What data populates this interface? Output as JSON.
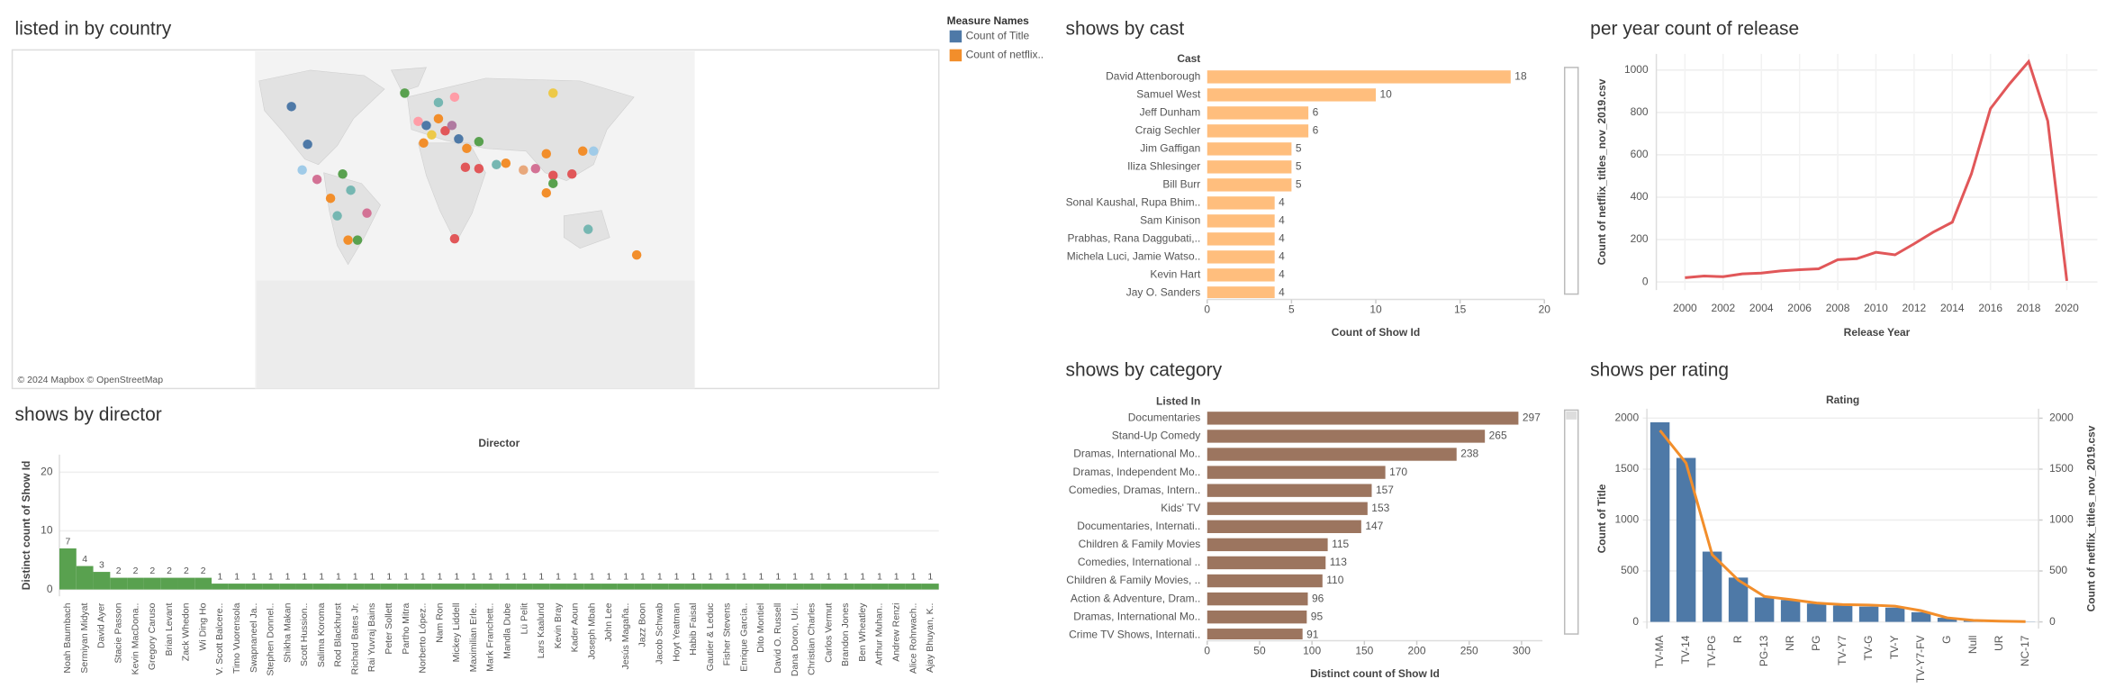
{
  "chart_data": [
    {
      "type": "map",
      "title": "listed in by country",
      "legend": {
        "title": "Measure Names",
        "items": [
          {
            "name": "Count of Title",
            "color": "#4e79a7"
          },
          {
            "name": "Count of netflix..",
            "color": "#f28e2b"
          }
        ]
      },
      "attribution": "© 2024 Mapbox © OpenStreetMap"
    },
    {
      "type": "hbar",
      "title": "shows by cast",
      "header": "Cast",
      "categories": [
        "David Attenborough",
        "Samuel West",
        "Jeff Dunham",
        "Craig Sechler",
        "Jim Gaffigan",
        "Iliza Shlesinger",
        "Bill Burr",
        "Sonal Kaushal, Rupa Bhim..",
        "Sam Kinison",
        "Prabhas, Rana Daggubati,..",
        "Michela Luci, Jamie Watso..",
        "Kevin Hart",
        "Jay O. Sanders"
      ],
      "values": [
        18,
        10,
        6,
        6,
        5,
        5,
        5,
        4,
        4,
        4,
        4,
        4,
        4
      ],
      "color": "#ffbe7d",
      "xlim": [
        0,
        20
      ],
      "xticks": [
        0,
        5,
        10,
        15,
        20
      ],
      "xlabel": "Count of Show Id"
    },
    {
      "type": "line",
      "title": "per year count of release",
      "x": [
        2000,
        2001,
        2002,
        2003,
        2004,
        2005,
        2006,
        2007,
        2008,
        2009,
        2010,
        2011,
        2012,
        2013,
        2014,
        2015,
        2016,
        2017,
        2018,
        2019,
        2020
      ],
      "values": [
        20,
        28,
        25,
        38,
        42,
        52,
        58,
        62,
        105,
        110,
        140,
        128,
        180,
        235,
        282,
        510,
        818,
        935,
        1040,
        760,
        5
      ],
      "color": "#e15759",
      "xlim": [
        1998.5,
        2021.6
      ],
      "xticks": [
        2000,
        2002,
        2004,
        2006,
        2008,
        2010,
        2012,
        2014,
        2016,
        2018,
        2020
      ],
      "ylim": [
        -38,
        1076
      ],
      "yticks": [
        0,
        200,
        400,
        600,
        800,
        1000
      ],
      "grid": true,
      "xlabel": "Release Year",
      "ylabel": "Count of netflix_titles_nov_2019.csv"
    },
    {
      "type": "hbar",
      "title": "shows by category",
      "header": "Listed In",
      "categories": [
        "Documentaries",
        "Stand-Up Comedy",
        "Dramas, International Mo..",
        "Dramas, Independent Mo..",
        "Comedies, Dramas, Intern..",
        "Kids' TV",
        "Documentaries, Internati..",
        "Children & Family Movies",
        "Comedies, International ..",
        "Children & Family Movies, ..",
        "Action & Adventure, Dram..",
        "Dramas, International Mo..",
        "Crime TV Shows, Internati.."
      ],
      "values": [
        297,
        265,
        238,
        170,
        157,
        153,
        147,
        115,
        113,
        110,
        96,
        95,
        91
      ],
      "color": "#9c755f",
      "xlim": [
        0,
        320
      ],
      "xticks": [
        0,
        50,
        100,
        150,
        200,
        250,
        300
      ],
      "xlabel": "Distinct count of Show Id"
    },
    {
      "type": "combo",
      "title": "shows per rating",
      "header": "Rating",
      "categories": [
        "TV-MA",
        "TV-14",
        "TV-PG",
        "R",
        "PG-13",
        "NR",
        "PG",
        "TV-Y7",
        "TV-G",
        "TV-Y",
        "TV-Y7-FV",
        "G",
        "Null",
        "UR",
        "NC-17"
      ],
      "series": [
        {
          "name": "Count of Title",
          "color": "#4e79a7",
          "values": [
            1960,
            1610,
            690,
            435,
            240,
            215,
            180,
            160,
            150,
            140,
            95,
            40,
            15,
            7,
            2
          ]
        },
        {
          "name": "Count of netflix_titles_nov_2019.csv",
          "color": "#f28e2b",
          "axis": "y2",
          "values": [
            1880,
            1560,
            660,
            410,
            250,
            220,
            185,
            170,
            165,
            155,
            110,
            40,
            15,
            7,
            3
          ]
        }
      ],
      "ylim": [
        -66,
        2093
      ],
      "yticks": [
        0,
        500,
        1000,
        1500,
        2000
      ],
      "y2lim": [
        -66,
        2093
      ],
      "y2ticks": [
        0,
        500,
        1000,
        1500,
        2000
      ],
      "grid": true
    },
    {
      "type": "vbar",
      "title": "shows by director",
      "header": "Director",
      "categories": [
        "Noah Baumbach",
        "Sermiyan Midyat",
        "David Ayer",
        "Stacie Passon",
        "Kevin MacDona..",
        "Gregory Caruso",
        "Brian Levant",
        "Zack Whedon",
        "Wi Ding Ho",
        "V. Scott Balcere..",
        "Timo Vuorensola",
        "Swapnaneel Ja..",
        "Stephen Donnel..",
        "Shikha Makan",
        "Scott Hussion..",
        "Salima Koroma",
        "Rod Blackhurst",
        "Richard Bates Jr.",
        "Rai Yuvraj Bains",
        "Peter Sollett",
        "Partho Mitra",
        "Norberto López..",
        "Nam Ron",
        "Mickey Liddell",
        "Maximilian Erle..",
        "Mark Franchett..",
        "Mandla Dube",
        "Lü Pelit",
        "Lars Kaalund",
        "Kevin Bray",
        "Kader Aoun",
        "Joseph Mbah",
        "John Lee",
        "Jesús Magaña..",
        "Jazz Boon",
        "Jacob Schwab",
        "Hoyt Yeatman",
        "Habib Faisal",
        "Gautier & Leduc",
        "Fisher Stevens",
        "Enrique García..",
        "Dito Montiel",
        "David O. Russell",
        "Dana Doron, Uri..",
        "Christian Charles",
        "Carlos Vermut",
        "Brandon Jones",
        "Ben Wheatley",
        "Arthur Muhan..",
        "Andrew Renzi",
        "Alice Rohrwach..",
        "Ajay Bhuyan, K.."
      ],
      "values": [
        7,
        4,
        3,
        2,
        2,
        2,
        2,
        2,
        2,
        1,
        1,
        1,
        1,
        1,
        1,
        1,
        1,
        1,
        1,
        1,
        1,
        1,
        1,
        1,
        1,
        1,
        1,
        1,
        1,
        1,
        1,
        1,
        1,
        1,
        1,
        1,
        1,
        1,
        1,
        1,
        1,
        1,
        1,
        1,
        1,
        1,
        1,
        1,
        1,
        1,
        1,
        1
      ],
      "color": "#59a14f",
      "ylim": [
        -1.15,
        23
      ],
      "yticks": [
        0,
        10,
        20
      ],
      "grid": true,
      "ylabel": "Distinct count of Show Id"
    }
  ]
}
